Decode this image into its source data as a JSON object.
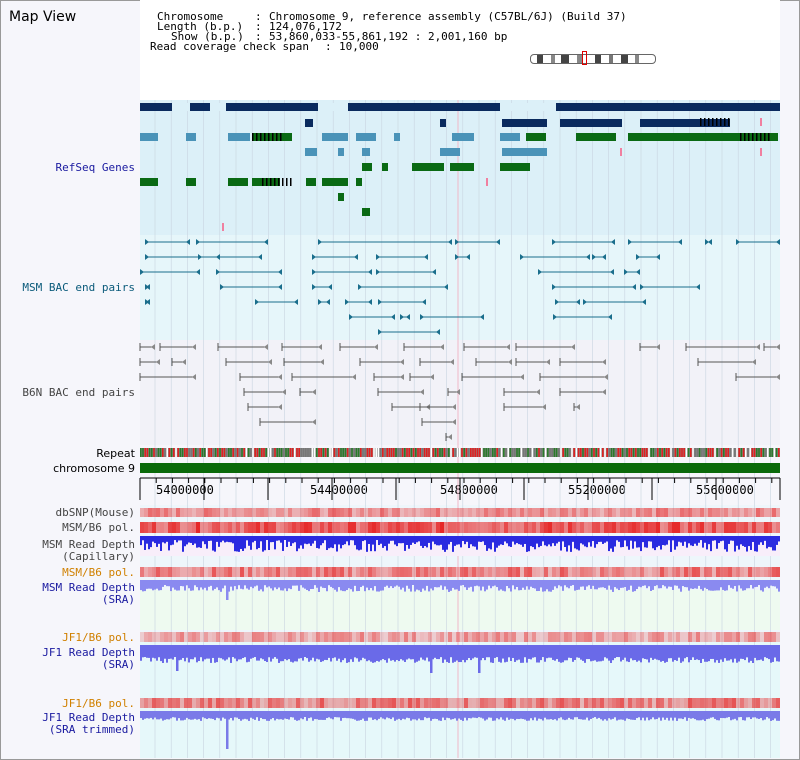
{
  "title": "Map View",
  "info": {
    "chromosome_label": "Chromosome",
    "chromosome_value": "Chromosome 9, reference assembly (C57BL/6J) (Build 37)",
    "length_label": "Length (b.p.)",
    "length_value": "124,076,172",
    "show_label": "Show (b.p.)",
    "show_value": "53,860,033-55,861,192 : 2,001,160 bp",
    "coverage_label": "Read coverage check span",
    "coverage_value": "10,000"
  },
  "tracks": {
    "refseq": "RefSeq Genes",
    "msm_bac": "MSM BAC end pairs",
    "b6n_bac": "B6N BAC end pairs",
    "repeat": "Repeat",
    "chromosome": "chromosome 9",
    "dbsnp": "dbSNP(Mouse)",
    "msm_b6_pol": "MSM/B6 pol.",
    "msm_depth_cap_1": "MSM Read Depth",
    "msm_depth_cap_2": "(Capillary)",
    "msm_b6_pol2": "MSM/B6 pol.",
    "msm_depth_sra_1": "MSM Read Depth",
    "msm_depth_sra_2": "(SRA)",
    "jf1_b6_pol": "JF1/B6 pol.",
    "jf1_depth_sra_1": "JF1 Read Depth",
    "jf1_depth_sra_2": "(SRA)",
    "jf1_b6_pol2": "JF1/B6 pol.",
    "jf1_depth_trim_1": "JF1 Read Depth",
    "jf1_depth_trim_2": "(SRA trimmed)"
  },
  "axis": {
    "ticks": [
      "54000000",
      "54400000",
      "54800000",
      "55200000",
      "55600000"
    ]
  },
  "colors": {
    "refseq_dark": "#0a2a5e",
    "refseq_mid": "#4a93b8",
    "refseq_green": "#0a6a14",
    "msm_line": "#1a6e8c",
    "b6n_line": "#555555",
    "label_blue": "#1a1aa0",
    "label_teal": "#0a5a7a",
    "label_orange": "#d08000",
    "repeat_red": "#e02020",
    "chrom_green": "#0a6a0a"
  }
}
